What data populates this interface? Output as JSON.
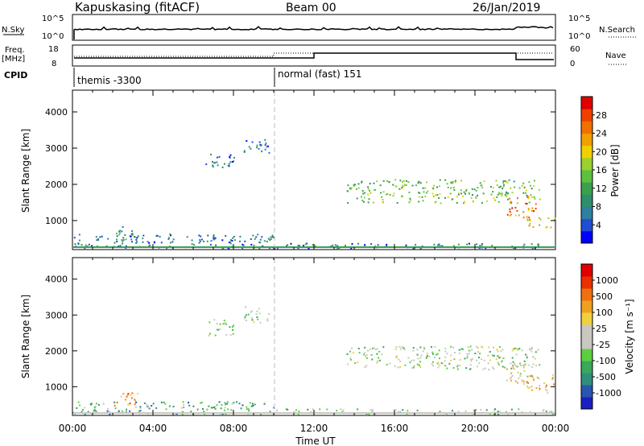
{
  "header": {
    "station": "Kapuskasing (fitACF)",
    "beam": "Beam 00",
    "date": "26/Jan/2019"
  },
  "strip": {
    "nsky_label": "N.Sky",
    "nsearch_label": "N.Search",
    "nsky_ticks": [
      "10^5",
      "10^0"
    ],
    "nsearch_ticks": [
      "10^5",
      "10^0"
    ],
    "freq_label": "Freq.",
    "freq_unit": "[MHz]",
    "freq_ticks": [
      "18",
      "8"
    ],
    "nave_label": "Nave",
    "nave_ticks": [
      "60",
      "0"
    ],
    "cpid_label": "CPID",
    "modes": [
      {
        "label": "themis -3300",
        "start_hour": 0
      },
      {
        "label": "normal (fast) 151",
        "start_hour": 10
      }
    ]
  },
  "chart_data": [
    {
      "type": "heatmap",
      "quantity": "Power",
      "ylabel": "Slant Range [km]",
      "xlabel": "Time UT",
      "x_ticks": [
        "00:00",
        "04:00",
        "08:00",
        "12:00",
        "16:00",
        "20:00",
        "00:00"
      ],
      "xlim_hours": [
        0,
        24
      ],
      "y_ticks": [
        1000,
        2000,
        3000,
        4000
      ],
      "ylim": [
        200,
        4600
      ],
      "colorbar": {
        "label": "Power [dB]",
        "ticks": [
          4,
          8,
          12,
          16,
          20,
          24,
          28
        ],
        "colors": [
          "#0000ff",
          "#1f4fd0",
          "#2e7fa0",
          "#2f8f6a",
          "#3aa050",
          "#5cc040",
          "#9ad030",
          "#f0d000",
          "#f0a000",
          "#f07000",
          "#f04000",
          "#e00000"
        ]
      },
      "regions": [
        {
          "t0": 6.6,
          "t1": 8.0,
          "r0": 2450,
          "r1": 2900,
          "level": 2
        },
        {
          "t0": 8.5,
          "t1": 9.8,
          "r0": 2800,
          "r1": 3250,
          "level": 2
        },
        {
          "t0": 2.0,
          "t1": 3.3,
          "r0": 450,
          "r1": 850,
          "level": 3
        },
        {
          "t0": 0.0,
          "t1": 10.0,
          "r0": 250,
          "r1": 650,
          "level": 2
        },
        {
          "t0": 10.0,
          "t1": 24.0,
          "r0": 250,
          "r1": 400,
          "level": 2
        },
        {
          "t0": 13.6,
          "t1": 23.2,
          "r0": 1500,
          "r1": 2150,
          "level": 5
        },
        {
          "t0": 21.5,
          "t1": 23.0,
          "r0": 1100,
          "r1": 1700,
          "level": 9
        },
        {
          "t0": 22.5,
          "t1": 24.0,
          "r0": 800,
          "r1": 1100,
          "level": 7
        }
      ]
    },
    {
      "type": "heatmap",
      "quantity": "Velocity",
      "ylabel": "Slant Range [km]",
      "xlabel": "Time UT",
      "x_ticks": [
        "00:00",
        "04:00",
        "08:00",
        "12:00",
        "16:00",
        "20:00",
        "00:00"
      ],
      "xlim_hours": [
        0,
        24
      ],
      "y_ticks": [
        1000,
        2000,
        3000,
        4000
      ],
      "ylim": [
        200,
        4600
      ],
      "colorbar": {
        "label": "Velocity [m s⁻¹]",
        "ticks": [
          "1000",
          "500",
          "100",
          "25",
          "-25",
          "-100",
          "-500",
          "-1000"
        ],
        "colors": [
          "#1a20c0",
          "#2a55b0",
          "#2f8f7a",
          "#3aa85a",
          "#5ccf40",
          "#c8c8c0",
          "#c8c8c0",
          "#f0d040",
          "#f0a020",
          "#f07010",
          "#e83000",
          "#e00000"
        ]
      },
      "regions": [
        {
          "t0": 6.6,
          "t1": 8.0,
          "r0": 2450,
          "r1": 2900,
          "level": 5
        },
        {
          "t0": 8.5,
          "t1": 9.8,
          "r0": 2800,
          "r1": 3250,
          "level": 5
        },
        {
          "t0": 2.0,
          "t1": 3.3,
          "r0": 450,
          "r1": 850,
          "level": 8
        },
        {
          "t0": 0.0,
          "t1": 10.0,
          "r0": 250,
          "r1": 600,
          "level": 3
        },
        {
          "t0": 10.0,
          "t1": 24.0,
          "r0": 250,
          "r1": 400,
          "level": 4
        },
        {
          "t0": 13.6,
          "t1": 23.2,
          "r0": 1500,
          "r1": 2150,
          "level": 5
        },
        {
          "t0": 21.5,
          "t1": 23.0,
          "r0": 1100,
          "r1": 1700,
          "level": 6
        },
        {
          "t0": 22.5,
          "t1": 24.0,
          "r0": 800,
          "r1": 1350,
          "level": 7
        }
      ]
    }
  ]
}
